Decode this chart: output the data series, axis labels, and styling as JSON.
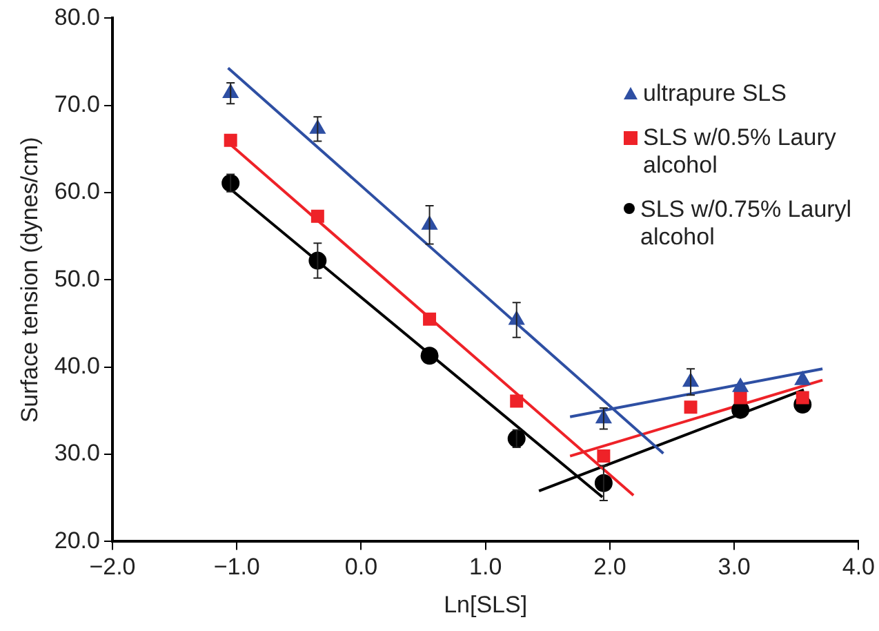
{
  "chart_data": {
    "type": "scatter",
    "xlabel": "Ln[SLS]",
    "ylabel": "Surface tension (dynes/cm)",
    "xlim": [
      -2,
      4
    ],
    "ylim": [
      20,
      80
    ],
    "xticks": [
      {
        "value": -2,
        "label": "−2.0"
      },
      {
        "value": -1,
        "label": "−1.0"
      },
      {
        "value": 0,
        "label": "0.0"
      },
      {
        "value": 1,
        "label": "1.0"
      },
      {
        "value": 2,
        "label": "2.0"
      },
      {
        "value": 3,
        "label": "3.0"
      },
      {
        "value": 4,
        "label": "4.0"
      }
    ],
    "yticks": [
      {
        "value": 20,
        "label": "20.0"
      },
      {
        "value": 30,
        "label": "30.0"
      },
      {
        "value": 40,
        "label": "40.0"
      },
      {
        "value": 50,
        "label": "50.0"
      },
      {
        "value": 60,
        "label": "60.0"
      },
      {
        "value": 70,
        "label": "70.0"
      },
      {
        "value": 80,
        "label": "80.0"
      }
    ],
    "grid": false,
    "legend": "top right",
    "series": [
      {
        "name": "ultrapure SLS",
        "type": "scatter",
        "marker": "triangle",
        "color": "#2e4fa3",
        "x": [
          -1.05,
          -0.35,
          0.55,
          1.25,
          1.95,
          2.65,
          3.05,
          3.55
        ],
        "values": [
          71.4,
          67.3,
          56.3,
          45.4,
          34.1,
          38.3,
          37.7,
          38.5
        ],
        "errors": [
          1.2,
          1.4,
          2.2,
          2.0,
          1.2,
          1.5,
          null,
          null
        ]
      },
      {
        "name": "SLS w/0.5% Laury alcohol",
        "type": "scatter",
        "marker": "square",
        "color": "#ee2228",
        "x": [
          -1.05,
          -0.35,
          0.55,
          1.25,
          1.95,
          2.65,
          3.05,
          3.55
        ],
        "values": [
          66.0,
          57.3,
          45.5,
          36.1,
          29.8,
          35.4,
          36.5,
          36.5
        ]
      },
      {
        "name": "SLS w/0.75% Lauryl alcohol",
        "type": "scatter",
        "marker": "circle",
        "color": "#000000",
        "x": [
          -1.05,
          -0.35,
          0.55,
          1.25,
          1.95,
          3.05,
          3.55
        ],
        "values": [
          61.1,
          52.2,
          41.3,
          31.8,
          26.7,
          35.1,
          35.7
        ],
        "errors": [
          1.0,
          2.0,
          null,
          1.0,
          2.0,
          null,
          null
        ]
      },
      {
        "type": "line",
        "marker": "none",
        "line_style": "solid",
        "color": "#2e4fa3",
        "x": [
          -1.07,
          2.43
        ],
        "values": [
          74.3,
          30.1
        ]
      },
      {
        "type": "line",
        "marker": "none",
        "line_style": "solid",
        "color": "#2e4fa3",
        "x": [
          1.68,
          3.71
        ],
        "values": [
          34.3,
          39.8
        ]
      },
      {
        "type": "line",
        "marker": "none",
        "line_style": "solid",
        "color": "#ee2228",
        "x": [
          -1.05,
          2.19
        ],
        "values": [
          65.5,
          25.3
        ]
      },
      {
        "type": "line",
        "marker": "none",
        "line_style": "solid",
        "color": "#ee2228",
        "x": [
          1.68,
          3.71
        ],
        "values": [
          29.8,
          38.5
        ]
      },
      {
        "type": "line",
        "marker": "none",
        "line_style": "solid",
        "color": "#000000",
        "x": [
          -1.05,
          1.94
        ],
        "values": [
          60.4,
          25.1
        ]
      },
      {
        "type": "line",
        "marker": "none",
        "line_style": "solid",
        "color": "#000000",
        "x": [
          1.43,
          3.56
        ],
        "values": [
          25.8,
          37.4
        ]
      }
    ]
  }
}
